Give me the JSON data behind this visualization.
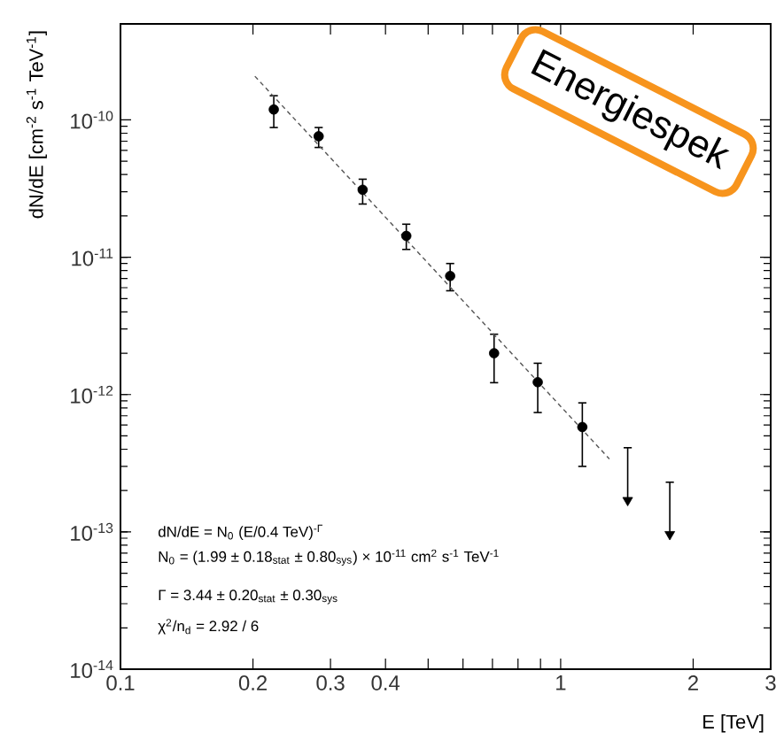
{
  "chart_data": {
    "type": "scatter",
    "xlabel": "E [TeV]",
    "ylabel": "dN/dE [cm$^{-2}$ s$^{-1}$ TeV$^{-1}$]",
    "log": "xy",
    "xlim": [
      0.1,
      3
    ],
    "ylim": [
      1e-14,
      5e-10
    ],
    "xticks": [
      0.1,
      0.2,
      0.3,
      0.4,
      {
        "value": 0.5,
        "label": null
      },
      {
        "value": 0.6,
        "label": null
      },
      {
        "value": 0.7,
        "label": null
      },
      {
        "value": 0.8,
        "label": null
      },
      {
        "value": 0.9,
        "label": null
      },
      1,
      2,
      3
    ],
    "yticks": [
      {
        "value": 1e-14,
        "label": "10$^{-14}$"
      },
      {
        "value": 1e-13,
        "label": "10$^{-13}$"
      },
      {
        "value": 1e-12,
        "label": "10$^{-12}$"
      },
      {
        "value": 1e-11,
        "label": "10$^{-11}$"
      },
      {
        "value": 1e-10,
        "label": "10$^{-10}$"
      }
    ],
    "grid": false,
    "series": [
      {
        "type": "scatter",
        "marker": "circle",
        "color": "#000000",
        "x": [
          0.223,
          0.282,
          0.355,
          0.446,
          0.561,
          0.706,
          0.887,
          1.12
        ],
        "values": [
          1.19e-10,
          7.6e-11,
          3.1e-11,
          1.43e-11,
          7.3e-12,
          2e-12,
          1.23e-12,
          5.8e-13
        ],
        "errors": [
          [
            8.8e-11,
            1.5e-10
          ],
          [
            6.3e-11,
            8.8e-11
          ],
          [
            2.44e-11,
            3.7e-11
          ],
          [
            1.14e-11,
            1.74e-11
          ],
          [
            5.7e-12,
            9e-12
          ],
          [
            1.22e-12,
            2.75e-12
          ],
          [
            7.4e-13,
            1.69e-12
          ],
          [
            3e-13,
            8.7e-13
          ]
        ]
      },
      {
        "type": "scatter",
        "marker": "triangle",
        "color": "#000000",
        "x": [
          1.42,
          1.77
        ],
        "values": [
          1.7e-13,
          9.6e-14
        ],
        "errors": [
          [
            1.7e-13,
            4.1e-13
          ],
          [
            9.6e-14,
            2.3e-13
          ]
        ]
      },
      {
        "type": "line",
        "line_style": "dashed",
        "marker": "none",
        "color": "#555555",
        "x": [
          0.202,
          1.29
        ],
        "values": [
          2.08e-10,
          3.4e-13
        ]
      }
    ],
    "annotations": [
      "dN/dE = N$_{0}$ (E/0.4 TeV)$^{-Γ}$",
      "N$_{0}$ = (1.99 ± 0.18$_{stat}$ ± 0.80$_{sys}$) × 10$^{-11}$ cm$^{2}$ s$^{-1}$ TeV$^{-1}$",
      "Γ = 3.44 ± 0.20$_{stat}$ ± 0.30$_{sys}$",
      "χ$^{2}$/n$_{d}$ = 2.92 / 6",
      "Energiespek"
    ]
  }
}
